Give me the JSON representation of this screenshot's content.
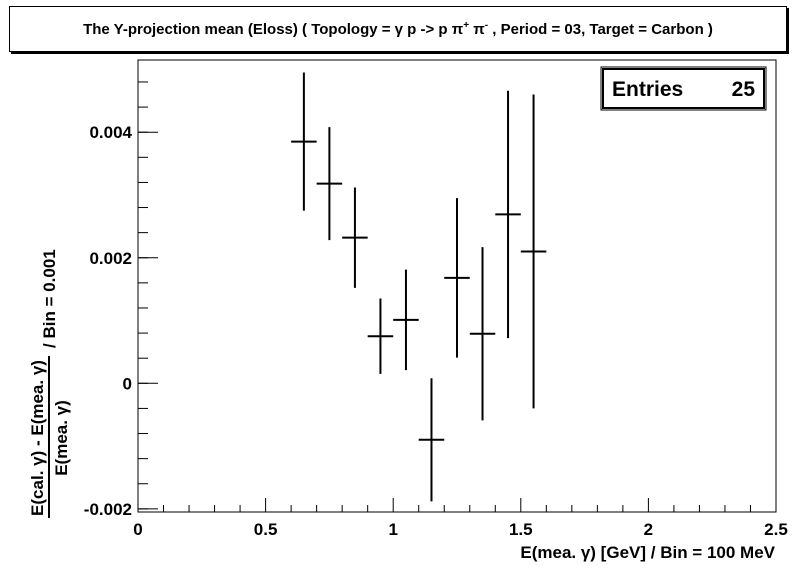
{
  "title": {
    "part1": "The Y-projection mean (Eloss) ( Topology = γ p -> p π",
    "sup1": "+",
    "part2": " π",
    "sup2": "-",
    "part3": " , Period = 03, Target = Carbon )"
  },
  "stats": {
    "label": "Entries",
    "value": "25"
  },
  "chart_data": {
    "type": "scatter",
    "title": "The Y-projection mean (Eloss) ( Topology = γ p -> p π+ π- , Period = 03, Target = Carbon )",
    "xlabel": "E(mea. γ) [GeV] / Bin = 100 MeV",
    "ylabel": {
      "numerator": "E(cal. γ) - E(mea. γ)",
      "denominator": "E(mea. γ)",
      "suffix": "/ Bin = 0.001"
    },
    "xlim": [
      0,
      2.5
    ],
    "ylim": [
      -0.00205,
      0.00515
    ],
    "xticks": [
      {
        "v": 0,
        "label": "0"
      },
      {
        "v": 0.5,
        "label": "0.5"
      },
      {
        "v": 1,
        "label": "1"
      },
      {
        "v": 1.5,
        "label": "1.5"
      },
      {
        "v": 2,
        "label": "2"
      },
      {
        "v": 2.5,
        "label": "2.5"
      }
    ],
    "yticks": [
      {
        "v": -0.002,
        "label": "-0.002"
      },
      {
        "v": 0,
        "label": "0"
      },
      {
        "v": 0.002,
        "label": "0.002"
      },
      {
        "v": 0.004,
        "label": "0.004"
      }
    ],
    "x_half_width": 0.05,
    "points": [
      {
        "x": 0.65,
        "y": 0.00385,
        "err": 0.0011
      },
      {
        "x": 0.75,
        "y": 0.00318,
        "err": 0.0009
      },
      {
        "x": 0.85,
        "y": 0.00232,
        "err": 0.0008
      },
      {
        "x": 0.95,
        "y": 0.00075,
        "err": 0.0006
      },
      {
        "x": 1.05,
        "y": 0.00101,
        "err": 0.0008
      },
      {
        "x": 1.15,
        "y": -0.0009,
        "err": 0.00098
      },
      {
        "x": 1.25,
        "y": 0.00168,
        "err": 0.00127
      },
      {
        "x": 1.35,
        "y": 0.00079,
        "err": 0.00138
      },
      {
        "x": 1.45,
        "y": 0.00269,
        "err": 0.00197
      },
      {
        "x": 1.55,
        "y": 0.0021,
        "err": 0.0025
      }
    ],
    "grid": false,
    "legend": "none",
    "colors": {
      "markers": "#000000",
      "axes": "#000000",
      "background": "#ffffff"
    }
  }
}
